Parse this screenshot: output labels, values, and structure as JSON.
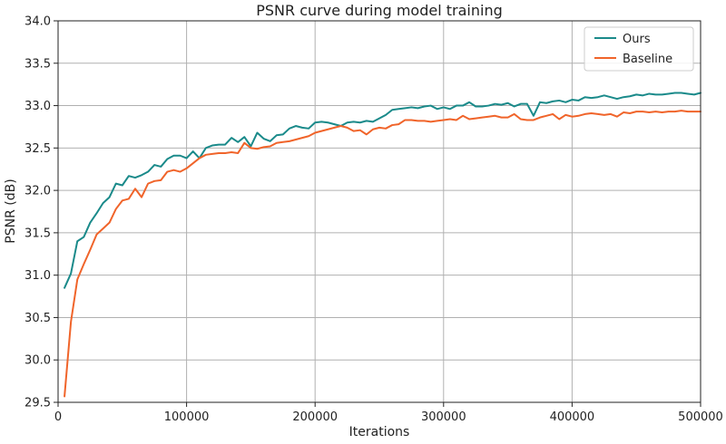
{
  "chart_data": {
    "type": "line",
    "title": "PSNR curve during model training",
    "xlabel": "Iterations",
    "ylabel": "PSNR (dB)",
    "xlim": [
      0,
      500000
    ],
    "ylim": [
      29.5,
      34.0
    ],
    "xticks": [
      0,
      100000,
      200000,
      300000,
      400000,
      500000
    ],
    "yticks": [
      29.5,
      30.0,
      30.5,
      31.0,
      31.5,
      32.0,
      32.5,
      33.0,
      33.5,
      34.0
    ],
    "xtick_labels": [
      "0",
      "100000",
      "200000",
      "300000",
      "400000",
      "500000"
    ],
    "ytick_labels": [
      "29.5",
      "30.0",
      "30.5",
      "31.0",
      "31.5",
      "32.0",
      "32.5",
      "33.0",
      "33.5",
      "34.0"
    ],
    "grid": true,
    "legend_position": "top-right",
    "series": [
      {
        "name": "Ours",
        "color": "#1a8a8a",
        "points": [
          [
            5000,
            30.85
          ],
          [
            10000,
            31.02
          ],
          [
            15000,
            31.4
          ],
          [
            20000,
            31.45
          ],
          [
            25000,
            31.62
          ],
          [
            30000,
            31.73
          ],
          [
            35000,
            31.85
          ],
          [
            40000,
            31.92
          ],
          [
            45000,
            32.08
          ],
          [
            50000,
            32.06
          ],
          [
            55000,
            32.17
          ],
          [
            60000,
            32.15
          ],
          [
            65000,
            32.18
          ],
          [
            70000,
            32.22
          ],
          [
            75000,
            32.3
          ],
          [
            80000,
            32.28
          ],
          [
            85000,
            32.37
          ],
          [
            90000,
            32.41
          ],
          [
            95000,
            32.41
          ],
          [
            100000,
            32.38
          ],
          [
            105000,
            32.46
          ],
          [
            110000,
            32.38
          ],
          [
            115000,
            32.5
          ],
          [
            120000,
            32.53
          ],
          [
            125000,
            32.54
          ],
          [
            130000,
            32.54
          ],
          [
            135000,
            32.62
          ],
          [
            140000,
            32.57
          ],
          [
            145000,
            32.63
          ],
          [
            150000,
            32.52
          ],
          [
            155000,
            32.68
          ],
          [
            160000,
            32.61
          ],
          [
            165000,
            32.58
          ],
          [
            170000,
            32.65
          ],
          [
            175000,
            32.66
          ],
          [
            180000,
            32.73
          ],
          [
            185000,
            32.76
          ],
          [
            190000,
            32.74
          ],
          [
            195000,
            32.73
          ],
          [
            200000,
            32.8
          ],
          [
            205000,
            32.81
          ],
          [
            210000,
            32.8
          ],
          [
            215000,
            32.78
          ],
          [
            220000,
            32.76
          ],
          [
            225000,
            32.8
          ],
          [
            230000,
            32.81
          ],
          [
            235000,
            32.8
          ],
          [
            240000,
            32.82
          ],
          [
            245000,
            32.81
          ],
          [
            250000,
            32.85
          ],
          [
            255000,
            32.89
          ],
          [
            260000,
            32.95
          ],
          [
            265000,
            32.96
          ],
          [
            270000,
            32.97
          ],
          [
            275000,
            32.98
          ],
          [
            280000,
            32.97
          ],
          [
            285000,
            32.99
          ],
          [
            290000,
            33.0
          ],
          [
            295000,
            32.96
          ],
          [
            300000,
            32.98
          ],
          [
            305000,
            32.96
          ],
          [
            310000,
            33.0
          ],
          [
            315000,
            33.0
          ],
          [
            320000,
            33.04
          ],
          [
            325000,
            32.99
          ],
          [
            330000,
            32.99
          ],
          [
            335000,
            33.0
          ],
          [
            340000,
            33.02
          ],
          [
            345000,
            33.01
          ],
          [
            350000,
            33.03
          ],
          [
            355000,
            32.99
          ],
          [
            360000,
            33.02
          ],
          [
            365000,
            33.02
          ],
          [
            370000,
            32.88
          ],
          [
            375000,
            33.04
          ],
          [
            380000,
            33.03
          ],
          [
            385000,
            33.05
          ],
          [
            390000,
            33.06
          ],
          [
            395000,
            33.04
          ],
          [
            400000,
            33.07
          ],
          [
            405000,
            33.06
          ],
          [
            410000,
            33.1
          ],
          [
            415000,
            33.09
          ],
          [
            420000,
            33.1
          ],
          [
            425000,
            33.12
          ],
          [
            430000,
            33.1
          ],
          [
            435000,
            33.08
          ],
          [
            440000,
            33.1
          ],
          [
            445000,
            33.11
          ],
          [
            450000,
            33.13
          ],
          [
            455000,
            33.12
          ],
          [
            460000,
            33.14
          ],
          [
            465000,
            33.13
          ],
          [
            470000,
            33.13
          ],
          [
            475000,
            33.14
          ],
          [
            480000,
            33.15
          ],
          [
            485000,
            33.15
          ],
          [
            490000,
            33.14
          ],
          [
            495000,
            33.13
          ],
          [
            500000,
            33.15
          ]
        ]
      },
      {
        "name": "Baseline",
        "color": "#f0642a",
        "points": [
          [
            5000,
            29.57
          ],
          [
            10000,
            30.45
          ],
          [
            15000,
            30.95
          ],
          [
            20000,
            31.13
          ],
          [
            25000,
            31.3
          ],
          [
            30000,
            31.48
          ],
          [
            35000,
            31.55
          ],
          [
            40000,
            31.62
          ],
          [
            45000,
            31.78
          ],
          [
            50000,
            31.88
          ],
          [
            55000,
            31.9
          ],
          [
            60000,
            32.02
          ],
          [
            65000,
            31.92
          ],
          [
            70000,
            32.08
          ],
          [
            75000,
            32.11
          ],
          [
            80000,
            32.12
          ],
          [
            85000,
            32.22
          ],
          [
            90000,
            32.24
          ],
          [
            95000,
            32.22
          ],
          [
            100000,
            32.26
          ],
          [
            105000,
            32.32
          ],
          [
            110000,
            32.38
          ],
          [
            115000,
            32.42
          ],
          [
            120000,
            32.43
          ],
          [
            125000,
            32.44
          ],
          [
            130000,
            32.44
          ],
          [
            135000,
            32.45
          ],
          [
            140000,
            32.44
          ],
          [
            145000,
            32.56
          ],
          [
            150000,
            32.5
          ],
          [
            155000,
            32.49
          ],
          [
            160000,
            32.51
          ],
          [
            165000,
            32.52
          ],
          [
            170000,
            32.56
          ],
          [
            175000,
            32.57
          ],
          [
            180000,
            32.58
          ],
          [
            185000,
            32.6
          ],
          [
            190000,
            32.62
          ],
          [
            195000,
            32.64
          ],
          [
            200000,
            32.68
          ],
          [
            205000,
            32.7
          ],
          [
            210000,
            32.72
          ],
          [
            215000,
            32.74
          ],
          [
            220000,
            32.76
          ],
          [
            225000,
            32.74
          ],
          [
            230000,
            32.7
          ],
          [
            235000,
            32.71
          ],
          [
            240000,
            32.66
          ],
          [
            245000,
            32.72
          ],
          [
            250000,
            32.74
          ],
          [
            255000,
            32.73
          ],
          [
            260000,
            32.77
          ],
          [
            265000,
            32.78
          ],
          [
            270000,
            32.83
          ],
          [
            275000,
            32.83
          ],
          [
            280000,
            32.82
          ],
          [
            285000,
            32.82
          ],
          [
            290000,
            32.81
          ],
          [
            295000,
            32.82
          ],
          [
            300000,
            32.83
          ],
          [
            305000,
            32.84
          ],
          [
            310000,
            32.83
          ],
          [
            315000,
            32.88
          ],
          [
            320000,
            32.84
          ],
          [
            325000,
            32.85
          ],
          [
            330000,
            32.86
          ],
          [
            335000,
            32.87
          ],
          [
            340000,
            32.88
          ],
          [
            345000,
            32.86
          ],
          [
            350000,
            32.86
          ],
          [
            355000,
            32.9
          ],
          [
            360000,
            32.84
          ],
          [
            365000,
            32.83
          ],
          [
            370000,
            32.83
          ],
          [
            375000,
            32.86
          ],
          [
            380000,
            32.88
          ],
          [
            385000,
            32.9
          ],
          [
            390000,
            32.84
          ],
          [
            395000,
            32.89
          ],
          [
            400000,
            32.87
          ],
          [
            405000,
            32.88
          ],
          [
            410000,
            32.9
          ],
          [
            415000,
            32.91
          ],
          [
            420000,
            32.9
          ],
          [
            425000,
            32.89
          ],
          [
            430000,
            32.9
          ],
          [
            435000,
            32.87
          ],
          [
            440000,
            32.92
          ],
          [
            445000,
            32.91
          ],
          [
            450000,
            32.93
          ],
          [
            455000,
            32.93
          ],
          [
            460000,
            32.92
          ],
          [
            465000,
            32.93
          ],
          [
            470000,
            32.92
          ],
          [
            475000,
            32.93
          ],
          [
            480000,
            32.93
          ],
          [
            485000,
            32.94
          ],
          [
            490000,
            32.93
          ],
          [
            495000,
            32.93
          ],
          [
            500000,
            32.93
          ]
        ]
      }
    ]
  }
}
